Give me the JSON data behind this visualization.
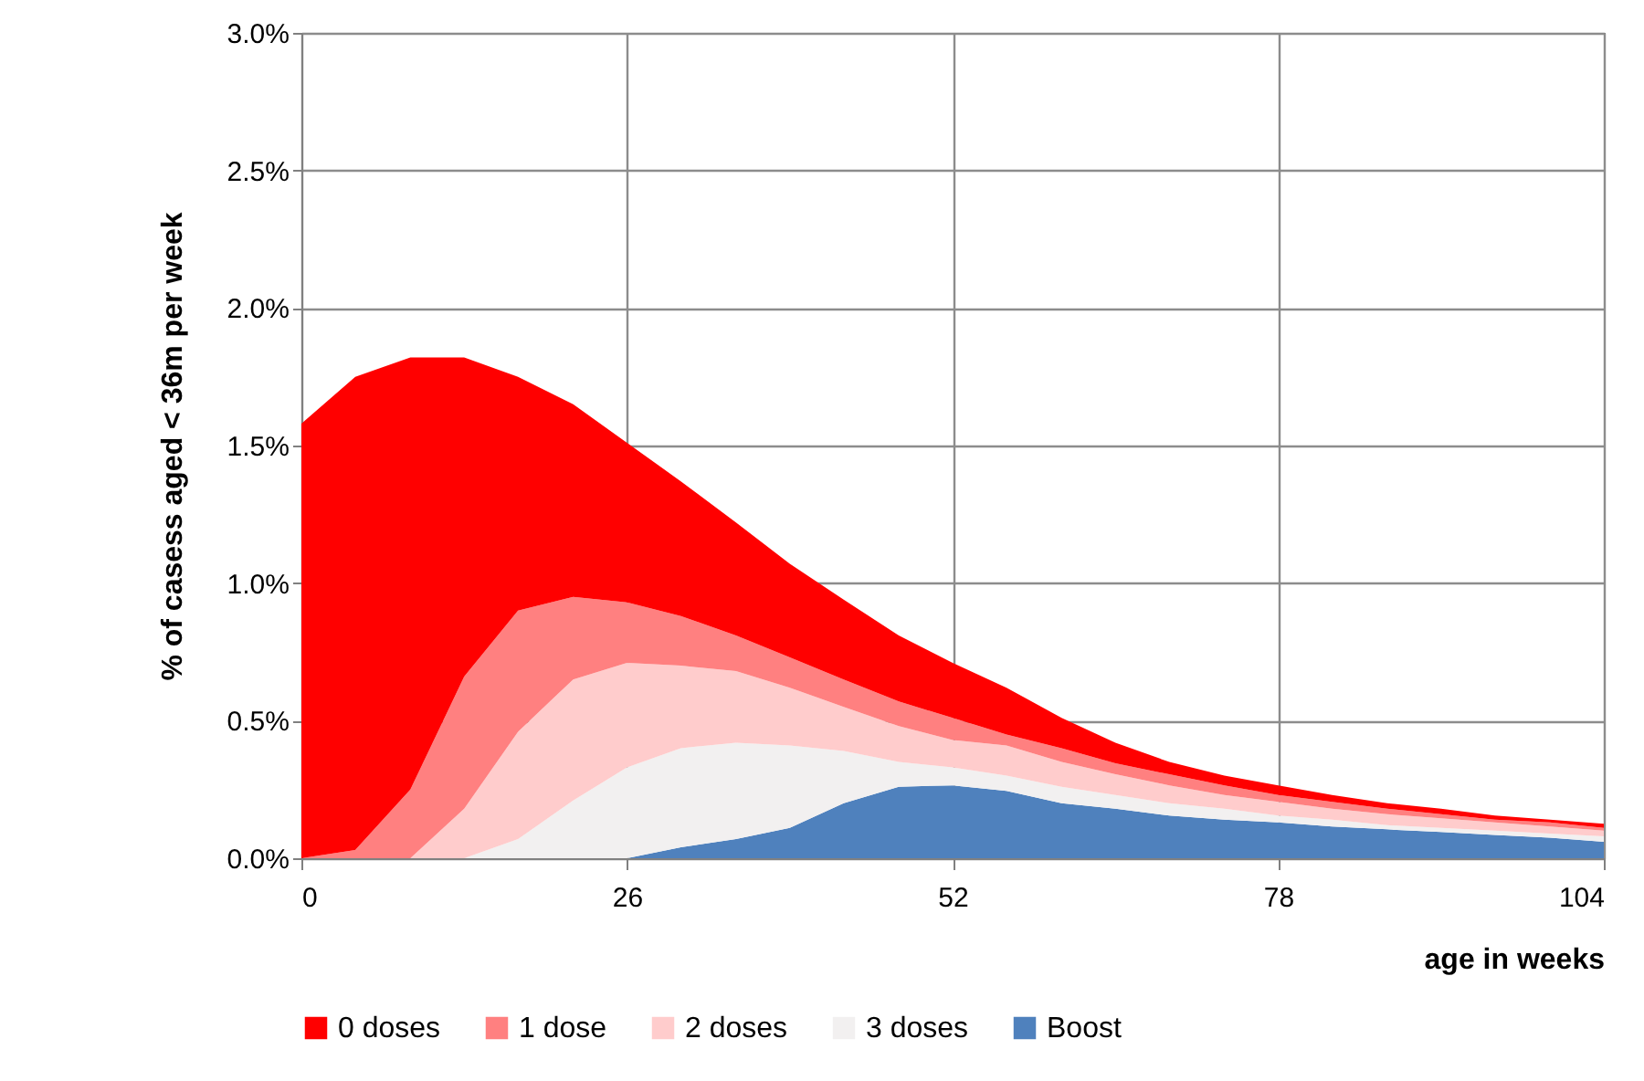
{
  "chart_data": {
    "type": "area",
    "stacked": true,
    "xlabel": "age in weeks",
    "ylabel": "% of casess aged < 36m per week",
    "x": [
      0,
      4.3,
      8.7,
      13,
      17.3,
      21.7,
      26,
      30.3,
      34.7,
      39,
      43.3,
      47.7,
      52,
      56.3,
      60.7,
      65,
      69.3,
      73.7,
      78,
      82.3,
      86.7,
      91,
      95.3,
      99.7,
      104
    ],
    "series": [
      {
        "name": "Boost",
        "color": "#4f81bd",
        "values": [
          0,
          0,
          0,
          0,
          0,
          0,
          0,
          0.04,
          0.07,
          0.11,
          0.2,
          0.26,
          0.265,
          0.245,
          0.2,
          0.18,
          0.155,
          0.14,
          0.13,
          0.115,
          0.105,
          0.095,
          0.085,
          0.075,
          0.06
        ]
      },
      {
        "name": "3 doses",
        "color": "#f2f0f0",
        "values": [
          0,
          0,
          0,
          0,
          0.07,
          0.21,
          0.33,
          0.36,
          0.35,
          0.3,
          0.19,
          0.09,
          0.065,
          0.055,
          0.06,
          0.05,
          0.045,
          0.04,
          0.025,
          0.025,
          0.015,
          0.015,
          0.015,
          0.015,
          0.02
        ]
      },
      {
        "name": "2 doses",
        "color": "#ffcccc",
        "values": [
          0,
          0,
          0,
          0.18,
          0.39,
          0.44,
          0.38,
          0.3,
          0.26,
          0.21,
          0.16,
          0.13,
          0.1,
          0.11,
          0.09,
          0.075,
          0.065,
          0.05,
          0.05,
          0.04,
          0.04,
          0.035,
          0.03,
          0.025,
          0.02
        ]
      },
      {
        "name": "1 dose",
        "color": "#ff8080",
        "values": [
          0,
          0.03,
          0.25,
          0.48,
          0.44,
          0.3,
          0.22,
          0.18,
          0.13,
          0.11,
          0.1,
          0.09,
          0.08,
          0.04,
          0.05,
          0.04,
          0.04,
          0.035,
          0.025,
          0.025,
          0.02,
          0.015,
          0.01,
          0.015,
          0.01
        ]
      },
      {
        "name": "0 doses",
        "color": "#ff0000",
        "values": [
          1.58,
          1.72,
          1.57,
          1.16,
          0.85,
          0.7,
          0.58,
          0.49,
          0.41,
          0.34,
          0.29,
          0.24,
          0.2,
          0.17,
          0.11,
          0.075,
          0.045,
          0.035,
          0.035,
          0.025,
          0.02,
          0.02,
          0.015,
          0.01,
          0.015
        ]
      }
    ],
    "xlim": [
      0,
      104
    ],
    "xticks": [
      0,
      26,
      52,
      78,
      104
    ],
    "ylim": [
      0,
      3
    ],
    "yticks": [
      {
        "value": 0,
        "label": "0.0%"
      },
      {
        "value": 0.5,
        "label": "0.5%"
      },
      {
        "value": 1,
        "label": "1.0%"
      },
      {
        "value": 1.5,
        "label": "1.5%"
      },
      {
        "value": 2,
        "label": "2.0%"
      },
      {
        "value": 2.5,
        "label": "2.5%"
      },
      {
        "value": 3,
        "label": "3.0%"
      }
    ],
    "grid": true,
    "legend": "bottom"
  }
}
